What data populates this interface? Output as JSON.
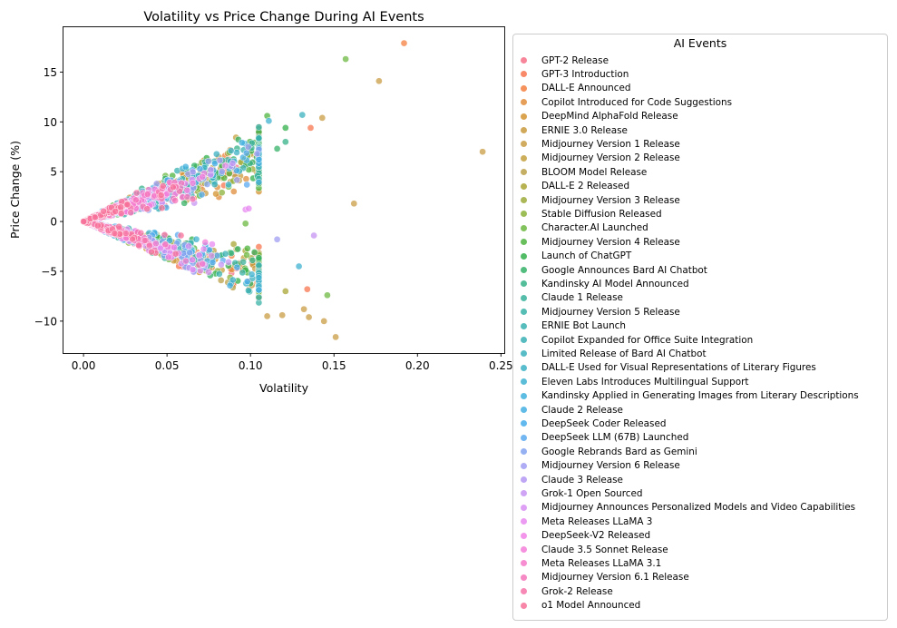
{
  "chart_data": {
    "type": "scatter",
    "title": "Volatility vs Price Change During AI Events",
    "xlabel": "Volatility",
    "ylabel": "Price Change (%)",
    "xlim": [
      -0.012,
      0.252
    ],
    "ylim": [
      -13.2,
      19.5
    ],
    "xticks": [
      0.0,
      0.05,
      0.1,
      0.15,
      0.2,
      0.25
    ],
    "xtick_labels": [
      "0.00",
      "0.05",
      "0.10",
      "0.15",
      "0.20",
      "0.25"
    ],
    "yticks": [
      -10,
      -5,
      0,
      5,
      10,
      15
    ],
    "ytick_labels": [
      "−10",
      "−5",
      "0",
      "5",
      "10",
      "15"
    ],
    "grid": false,
    "legend": {
      "title": "AI Events",
      "placement": "outside-right",
      "entries": [
        {
          "name": "GPT-2 Release",
          "color": "#f77189"
        },
        {
          "name": "GPT-3 Introduction",
          "color": "#f7754f"
        },
        {
          "name": "DALL-E Announced",
          "color": "#f47f3e"
        },
        {
          "name": "Copilot Introduced for Code Suggestions",
          "color": "#e08e3b"
        },
        {
          "name": "DeepMind AlphaFold Release",
          "color": "#d39330"
        },
        {
          "name": "ERNIE 3.0 Release",
          "color": "#c99a3d"
        },
        {
          "name": "Midjourney Version 1 Release",
          "color": "#c99c44"
        },
        {
          "name": "Midjourney Version 2 Release",
          "color": "#c4a03e"
        },
        {
          "name": "BLOOM Model Release",
          "color": "#bba14a"
        },
        {
          "name": "DALL-E 2 Released",
          "color": "#aaa534"
        },
        {
          "name": "Midjourney Version 3 Release",
          "color": "#9eac3b"
        },
        {
          "name": "Stable Diffusion Released",
          "color": "#8cb23a"
        },
        {
          "name": "Character.AI Launched",
          "color": "#6cb842"
        },
        {
          "name": "Midjourney Version 4 Release",
          "color": "#4fb43f"
        },
        {
          "name": "Launch of ChatGPT",
          "color": "#32b04a"
        },
        {
          "name": "Google Announces Bard AI Chatbot",
          "color": "#34b167"
        },
        {
          "name": "Kandinsky AI Model Announced",
          "color": "#36b38a"
        },
        {
          "name": "Claude 1 Release",
          "color": "#38b29b"
        },
        {
          "name": "Midjourney Version 5 Release",
          "color": "#38b1a7"
        },
        {
          "name": "ERNIE Bot Launch",
          "color": "#39b2b0"
        },
        {
          "name": "Copilot Expanded for Office Suite Integration",
          "color": "#3ab0b4"
        },
        {
          "name": "Limited Release of Bard AI Chatbot",
          "color": "#3bb0bd"
        },
        {
          "name": "DALL-E Used for Visual Representations of Literary Figures",
          "color": "#3cb1c6"
        },
        {
          "name": "Eleven Labs Introduces Multilingual Support",
          "color": "#3eb1d0"
        },
        {
          "name": "Kandinsky Applied in Generating Images from Literary Descriptions",
          "color": "#41b0dc"
        },
        {
          "name": "Claude 2 Release",
          "color": "#44afe3"
        },
        {
          "name": "DeepSeek Coder Released",
          "color": "#45adea"
        },
        {
          "name": "DeepSeek LLM (67B) Launched",
          "color": "#59a9f0"
        },
        {
          "name": "Google Rebrands Bard as Gemini",
          "color": "#84a3f0"
        },
        {
          "name": "Midjourney Version 6 Release",
          "color": "#a09df2"
        },
        {
          "name": "Claude 3 Release",
          "color": "#b498f3"
        },
        {
          "name": "Grok-1 Open Sourced",
          "color": "#c794f2"
        },
        {
          "name": "Midjourney Announces Personalized Models and Video Capabilities",
          "color": "#d88ff2"
        },
        {
          "name": "Meta Releases LLaMA 3",
          "color": "#e88af0"
        },
        {
          "name": "DeepSeek-V2 Released",
          "color": "#f183e8"
        },
        {
          "name": "Claude 3.5 Sonnet Release",
          "color": "#f37ed8"
        },
        {
          "name": "Meta Releases LLaMA 3.1",
          "color": "#f57ac9"
        },
        {
          "name": "Midjourney Version 6.1 Release",
          "color": "#f576ba"
        },
        {
          "name": "Grok-2 Release",
          "color": "#f674a9"
        },
        {
          "name": "o1 Model Announced",
          "color": "#f77199"
        }
      ]
    },
    "point_alpha": 0.75,
    "notable_points": [
      {
        "x": 0.192,
        "y": 17.9,
        "color": "#f47f3e"
      },
      {
        "x": 0.157,
        "y": 16.3,
        "color": "#6cb842"
      },
      {
        "x": 0.177,
        "y": 14.1,
        "color": "#c99c44"
      },
      {
        "x": 0.239,
        "y": 7.0,
        "color": "#c99c44"
      },
      {
        "x": 0.162,
        "y": 1.8,
        "color": "#c99c44"
      },
      {
        "x": 0.131,
        "y": 10.7,
        "color": "#3bb0bd"
      },
      {
        "x": 0.11,
        "y": 10.6,
        "color": "#4fb43f"
      },
      {
        "x": 0.143,
        "y": 10.4,
        "color": "#c99c44"
      },
      {
        "x": 0.111,
        "y": 10.1,
        "color": "#3eb1d0"
      },
      {
        "x": 0.136,
        "y": 9.4,
        "color": "#f7754f"
      },
      {
        "x": 0.121,
        "y": 9.4,
        "color": "#32b04a"
      },
      {
        "x": 0.121,
        "y": 8.0,
        "color": "#36b38a"
      },
      {
        "x": 0.116,
        "y": 7.3,
        "color": "#34b167"
      },
      {
        "x": 0.104,
        "y": 6.8,
        "color": "#a09df2"
      },
      {
        "x": 0.138,
        "y": -1.4,
        "color": "#c794f2"
      },
      {
        "x": 0.116,
        "y": -1.8,
        "color": "#a09df2"
      },
      {
        "x": 0.129,
        "y": -4.5,
        "color": "#3eb1d0"
      },
      {
        "x": 0.134,
        "y": -6.8,
        "color": "#f7754f"
      },
      {
        "x": 0.146,
        "y": -7.4,
        "color": "#6cb842"
      },
      {
        "x": 0.121,
        "y": -7.0,
        "color": "#aaa534"
      },
      {
        "x": 0.132,
        "y": -8.8,
        "color": "#c99c44"
      },
      {
        "x": 0.135,
        "y": -9.6,
        "color": "#c99c44"
      },
      {
        "x": 0.144,
        "y": -10.0,
        "color": "#c99c44"
      },
      {
        "x": 0.151,
        "y": -11.6,
        "color": "#c99c44"
      },
      {
        "x": 0.119,
        "y": -9.4,
        "color": "#c99c44"
      },
      {
        "x": 0.11,
        "y": -9.5,
        "color": "#c99c44"
      },
      {
        "x": 0.097,
        "y": 1.2,
        "color": "#e88af0"
      },
      {
        "x": 0.099,
        "y": 1.3,
        "color": "#e88af0"
      },
      {
        "x": 0.097,
        "y": -0.2,
        "color": "#6cb842"
      }
    ]
  }
}
